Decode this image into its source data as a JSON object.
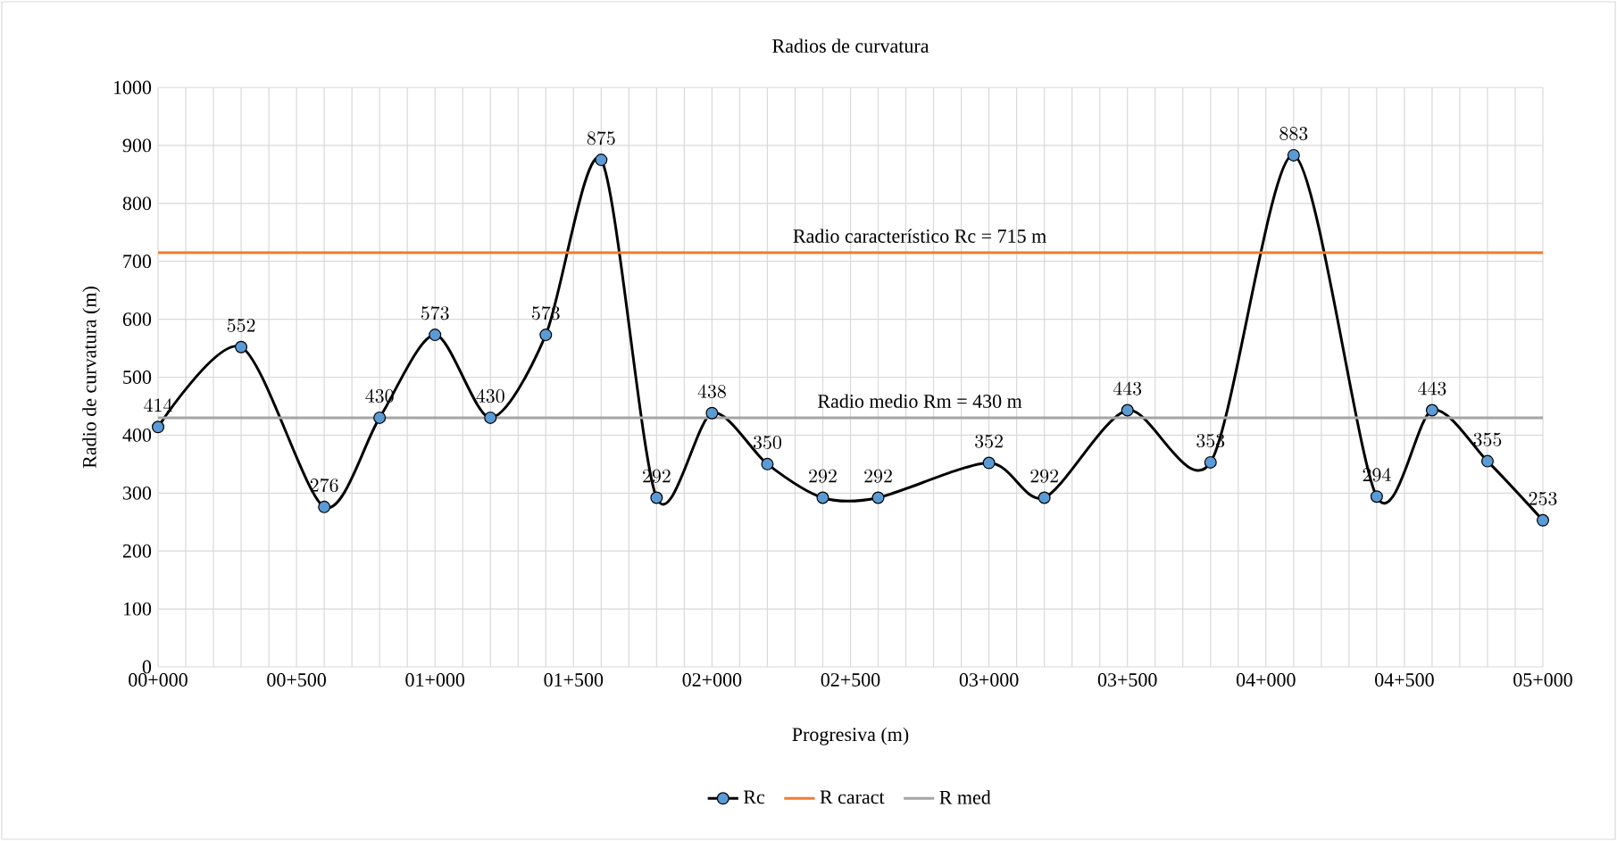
{
  "chart_data": {
    "type": "line",
    "title": "Radios de curvatura",
    "xlabel": "Progresiva (m)",
    "ylabel": "Radio de curvatura (m)",
    "categories": [
      "00+000",
      null,
      null,
      null,
      null,
      "00+500",
      null,
      null,
      null,
      null,
      "01+000",
      null,
      null,
      null,
      null,
      "01+500",
      null,
      null,
      null,
      null,
      "02+000",
      null,
      null,
      null,
      null,
      "02+500",
      null,
      null,
      null,
      null,
      "03+000",
      null,
      null,
      null,
      null,
      "03+500",
      null,
      null,
      null,
      null,
      "04+000",
      null,
      null,
      null,
      null,
      "04+500",
      null,
      null,
      null,
      null,
      "05+000"
    ],
    "ylim": [
      0,
      1000
    ],
    "yticks": [
      0,
      100,
      200,
      300,
      400,
      500,
      600,
      700,
      800,
      900,
      1000
    ],
    "grid": true,
    "legend": "bottom",
    "data_labels": true,
    "series": [
      {
        "name": "Rc",
        "color": "#000000",
        "marker": "circle",
        "values": [
          414,
          null,
          null,
          552,
          null,
          null,
          276,
          null,
          430,
          null,
          573,
          null,
          430,
          null,
          573,
          null,
          875,
          null,
          292,
          null,
          438,
          null,
          350,
          null,
          292,
          null,
          292,
          null,
          null,
          null,
          352,
          null,
          292,
          null,
          null,
          443,
          null,
          null,
          353,
          null,
          null,
          883,
          null,
          null,
          294,
          null,
          443,
          null,
          355,
          null,
          253
        ]
      },
      {
        "name": "R caract",
        "color": "#ed7d31",
        "marker": "none",
        "data_labels": false,
        "values": [
          715,
          715,
          715,
          715,
          715,
          715,
          715,
          715,
          715,
          715,
          715,
          715,
          715,
          715,
          715,
          715,
          715,
          715,
          715,
          715,
          715,
          715,
          715,
          715,
          715,
          715,
          715,
          715,
          715,
          715,
          715,
          715,
          715,
          715,
          715,
          715,
          715,
          715,
          715,
          715,
          715,
          715,
          715,
          715,
          715,
          715,
          715,
          715,
          715,
          715,
          715
        ]
      },
      {
        "name": "R med",
        "color": "#a5a5a5",
        "marker": "none",
        "data_labels": false,
        "values": [
          430,
          430,
          430,
          430,
          430,
          430,
          430,
          430,
          430,
          430,
          430,
          430,
          430,
          430,
          430,
          430,
          430,
          430,
          430,
          430,
          430,
          430,
          430,
          430,
          430,
          430,
          430,
          430,
          430,
          430,
          430,
          430,
          430,
          430,
          430,
          430,
          430,
          430,
          430,
          430,
          430,
          430,
          430,
          430,
          430,
          430,
          430,
          430,
          430,
          430,
          430
        ]
      }
    ],
    "annotations": [
      {
        "text": "Radio característico Rc  = 715 m",
        "y": 715
      },
      {
        "text": "Radio medio Rm = 430 m",
        "y": 430
      }
    ]
  }
}
